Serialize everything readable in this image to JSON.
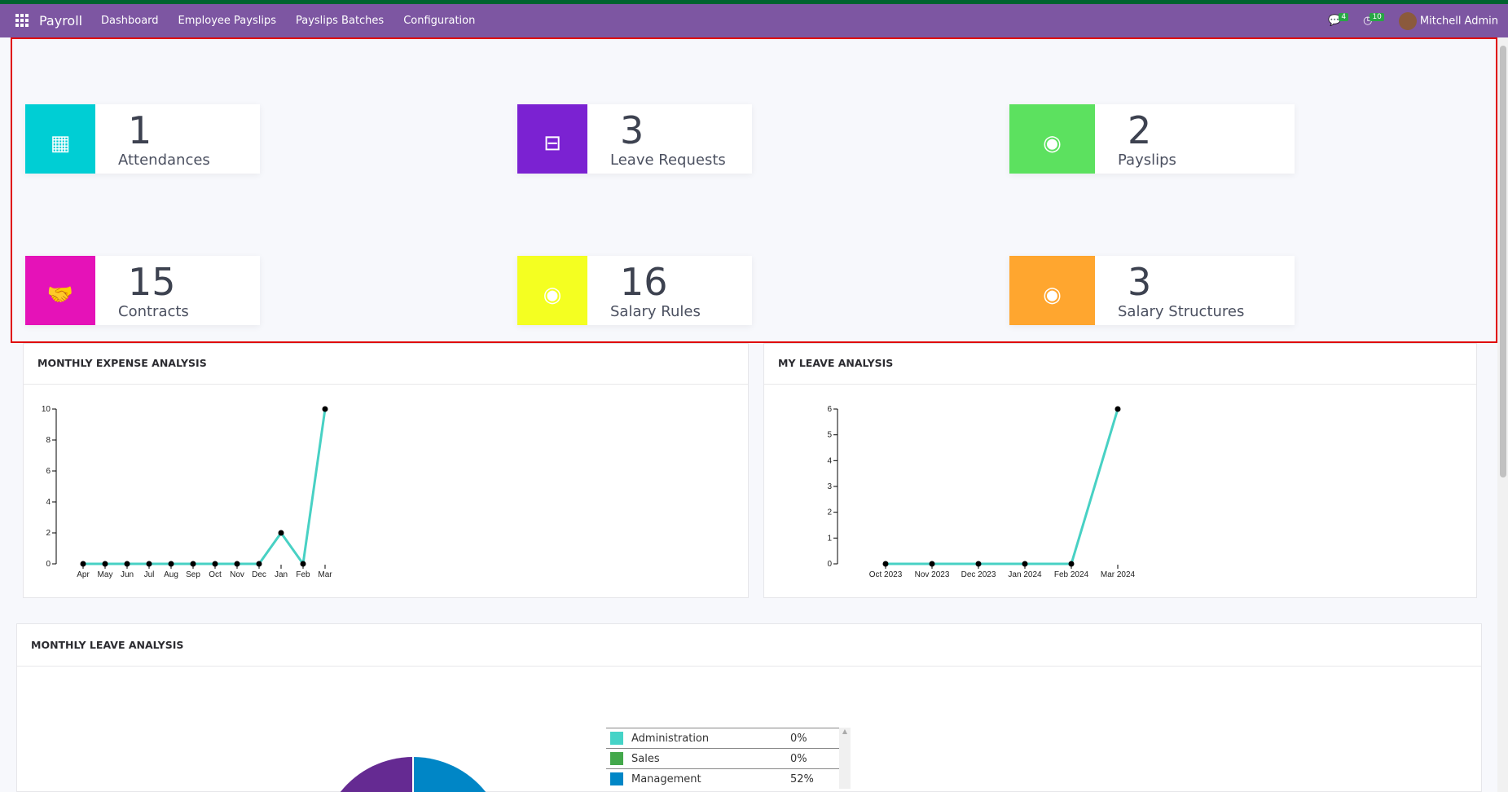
{
  "nav": {
    "app": "Payroll",
    "menu": [
      "Dashboard",
      "Employee Payslips",
      "Payslips Batches",
      "Configuration"
    ],
    "messages_count": "4",
    "activities_count": "10",
    "user": "Mitchell Admin"
  },
  "cards": [
    {
      "value": "1",
      "label": "Attendances",
      "color": "#00ced4",
      "icon": "calendar-icon"
    },
    {
      "value": "3",
      "label": "Leave Requests",
      "color": "#7b22d2",
      "icon": "calendar-minus-icon"
    },
    {
      "value": "2",
      "label": "Payslips",
      "color": "#5ce15f",
      "icon": "money-icon"
    },
    {
      "value": "15",
      "label": "Contracts",
      "color": "#e512b8",
      "icon": "handshake-icon"
    },
    {
      "value": "16",
      "label": "Salary Rules",
      "color": "#f4ff21",
      "icon": "money-icon"
    },
    {
      "value": "3",
      "label": "Salary Structures",
      "color": "#ffa62f",
      "icon": "money-icon"
    }
  ],
  "panels": {
    "expense": "MONTHLY EXPENSE ANALYSIS",
    "leave": "MY LEAVE ANALYSIS",
    "monthly_leave": "MONTHLY LEAVE ANALYSIS"
  },
  "chart_data": [
    {
      "type": "line",
      "categories": [
        "Apr",
        "May",
        "Jun",
        "Jul",
        "Aug",
        "Sep",
        "Oct",
        "Nov",
        "Dec",
        "Jan",
        "Feb",
        "Mar"
      ],
      "values": [
        0,
        0,
        0,
        0,
        0,
        0,
        0,
        0,
        0,
        2,
        0,
        10
      ],
      "ylim": [
        0,
        10
      ],
      "yticks": [
        0,
        2,
        4,
        6,
        8,
        10
      ],
      "color": "#48d1c4"
    },
    {
      "type": "line",
      "categories": [
        "Oct 2023",
        "Nov 2023",
        "Dec 2023",
        "Jan 2024",
        "Feb 2024",
        "Mar 2024"
      ],
      "values": [
        0,
        0,
        0,
        0,
        0,
        6
      ],
      "ylim": [
        0,
        6
      ],
      "yticks": [
        0,
        1,
        2,
        3,
        4,
        5,
        6
      ],
      "color": "#48d1c4"
    },
    {
      "type": "pie",
      "legend": [
        {
          "name": "Administration",
          "pct": "0%",
          "color": "#45d3c7"
        },
        {
          "name": "Sales",
          "pct": "0%",
          "color": "#43a84b"
        },
        {
          "name": "Management",
          "pct": "52%",
          "color": "#0086c6"
        }
      ],
      "other_color": "#652a92"
    }
  ]
}
